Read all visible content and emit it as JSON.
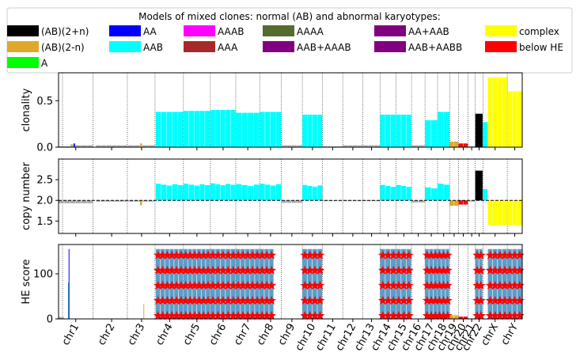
{
  "legend": {
    "title": "Models of mixed clones: normal (AB) and abnormal karyotypes:",
    "items": [
      {
        "label": "(AB)(2+n)",
        "color": "#000000"
      },
      {
        "label": "AA",
        "color": "#0000ff"
      },
      {
        "label": "AAAB",
        "color": "#ff00ff"
      },
      {
        "label": "AAAA",
        "color": "#556b2f"
      },
      {
        "label": "AA+AAB",
        "color": "#800080"
      },
      {
        "label": "complex",
        "color": "#ffff00"
      },
      {
        "label": "(AB)(2-n)",
        "color": "#e0a82a"
      },
      {
        "label": "AAB",
        "color": "#00ffff"
      },
      {
        "label": "AAA",
        "color": "#a52a2a"
      },
      {
        "label": "AAB+AAAB",
        "color": "#800080"
      },
      {
        "label": "AAB+AABB",
        "color": "#800080"
      },
      {
        "label": "below HE",
        "color": "#ff0000"
      },
      {
        "label": "A",
        "color": "#00ff00"
      }
    ]
  },
  "chart_data": {
    "type": "bar",
    "shared_x": {
      "chromosomes": [
        "chr1",
        "chr2",
        "chr3",
        "chr4",
        "chr5",
        "chr6",
        "chr7",
        "chr8",
        "chr9",
        "chr10",
        "chr11",
        "chr12",
        "chr13",
        "chr14",
        "chr15",
        "chr16",
        "chr17",
        "chr18",
        "chr19",
        "chr20",
        "chr21",
        "chr22",
        "chrX",
        "chrY"
      ],
      "xlim": [
        0,
        3100
      ]
    },
    "panels": [
      {
        "ylabel": "clonality",
        "ylim": [
          0,
          0.8
        ],
        "yticks": [
          0.0,
          0.5
        ],
        "ytick_labels": [
          "0.0",
          "0.5"
        ],
        "segments": [
          {
            "chrom": "chr1",
            "start": 0,
            "end": 80,
            "value": 0.01,
            "color": "#aaaaaa"
          },
          {
            "chrom": "chr1",
            "start": 80,
            "end": 100,
            "value": 0.03,
            "color": "#aaaaaa"
          },
          {
            "chrom": "chr1",
            "start": 100,
            "end": 112,
            "value": 0.04,
            "color": "#0000ff"
          },
          {
            "chrom": "chr1",
            "start": 112,
            "end": 230,
            "value": 0.02,
            "color": "#aaaaaa"
          },
          {
            "chrom": "chr2",
            "start": 250,
            "end": 460,
            "value": 0.02,
            "color": "#aaaaaa"
          },
          {
            "chrom": "chr3",
            "start": 465,
            "end": 545,
            "value": 0.02,
            "color": "#aaaaaa"
          },
          {
            "chrom": "chr3",
            "start": 545,
            "end": 560,
            "value": 0.04,
            "color": "#e0a82a"
          },
          {
            "chrom": "chr3",
            "start": 560,
            "end": 645,
            "value": 0.02,
            "color": "#aaaaaa"
          },
          {
            "chrom": "chr4",
            "start": 650,
            "end": 835,
            "value": 0.38,
            "color": "#00ffff"
          },
          {
            "chrom": "chr5",
            "start": 835,
            "end": 1015,
            "value": 0.39,
            "color": "#00ffff"
          },
          {
            "chrom": "chr6",
            "start": 1015,
            "end": 1185,
            "value": 0.4,
            "color": "#00ffff"
          },
          {
            "chrom": "chr7",
            "start": 1185,
            "end": 1345,
            "value": 0.37,
            "color": "#00ffff"
          },
          {
            "chrom": "chr8",
            "start": 1345,
            "end": 1490,
            "value": 0.38,
            "color": "#00ffff"
          },
          {
            "chrom": "chr9",
            "start": 1490,
            "end": 1630,
            "value": 0.02,
            "color": "#aaaaaa"
          },
          {
            "chrom": "chr10",
            "start": 1630,
            "end": 1765,
            "value": 0.35,
            "color": "#00ffff"
          },
          {
            "chrom": "chr11",
            "start": 1765,
            "end": 1900,
            "value": 0.01,
            "color": "#aaaaaa"
          },
          {
            "chrom": "chr12",
            "start": 1900,
            "end": 2035,
            "value": 0.02,
            "color": "#aaaaaa"
          },
          {
            "chrom": "chr13",
            "start": 2035,
            "end": 2150,
            "value": 0.02,
            "color": "#aaaaaa"
          },
          {
            "chrom": "chr14",
            "start": 2150,
            "end": 2257,
            "value": 0.35,
            "color": "#00ffff"
          },
          {
            "chrom": "chr15",
            "start": 2257,
            "end": 2360,
            "value": 0.35,
            "color": "#00ffff"
          },
          {
            "chrom": "chr16",
            "start": 2360,
            "end": 2450,
            "value": 0.02,
            "color": "#aaaaaa"
          },
          {
            "chrom": "chr17",
            "start": 2450,
            "end": 2534,
            "value": 0.29,
            "color": "#00ffff"
          },
          {
            "chrom": "chr18",
            "start": 2534,
            "end": 2615,
            "value": 0.38,
            "color": "#00ffff"
          },
          {
            "chrom": "chr19",
            "start": 2615,
            "end": 2674,
            "value": 0.06,
            "color": "#e0a82a"
          },
          {
            "chrom": "chr20",
            "start": 2674,
            "end": 2738,
            "value": 0.04,
            "color": "#ff0000"
          },
          {
            "chrom": "chr21",
            "start": 2738,
            "end": 2786,
            "value": 0.01,
            "color": "#aaaaaa"
          },
          {
            "chrom": "chr22",
            "start": 2786,
            "end": 2837,
            "value": 0.36,
            "color": "#000000"
          },
          {
            "chrom": "chrX",
            "start": 2837,
            "end": 2870,
            "value": 0.27,
            "color": "#00ffff"
          },
          {
            "chrom": "chrX",
            "start": 2870,
            "end": 3000,
            "value": 0.75,
            "color": "#ffff00"
          },
          {
            "chrom": "chrY",
            "start": 3000,
            "end": 3100,
            "value": 0.6,
            "color": "#ffff00"
          }
        ]
      },
      {
        "ylabel": "copy number",
        "ylim": [
          1.2,
          3.0
        ],
        "yticks": [
          1.5,
          2.0,
          2.5
        ],
        "ytick_labels": [
          "1.5",
          "2.0",
          "2.5"
        ],
        "reference_line": 2.0,
        "segments": [
          {
            "chrom": "chr1",
            "start": 0,
            "end": 230,
            "value": 1.93,
            "color": "#aaaaaa"
          },
          {
            "chrom": "chr2",
            "start": 250,
            "end": 460,
            "value": 1.97,
            "color": "#aaaaaa"
          },
          {
            "chrom": "chr3",
            "start": 465,
            "end": 545,
            "value": 1.97,
            "color": "#aaaaaa"
          },
          {
            "chrom": "chr3",
            "start": 545,
            "end": 560,
            "value": 1.88,
            "color": "#e0a82a"
          },
          {
            "chrom": "chr3",
            "start": 560,
            "end": 645,
            "value": 1.97,
            "color": "#aaaaaa"
          },
          {
            "chrom": "chr4",
            "start": 650,
            "end": 835,
            "value": 2.38,
            "color": "#00ffff"
          },
          {
            "chrom": "chr5",
            "start": 835,
            "end": 1015,
            "value": 2.38,
            "color": "#00ffff"
          },
          {
            "chrom": "chr6",
            "start": 1015,
            "end": 1185,
            "value": 2.39,
            "color": "#00ffff"
          },
          {
            "chrom": "chr7",
            "start": 1185,
            "end": 1345,
            "value": 2.37,
            "color": "#00ffff"
          },
          {
            "chrom": "chr8",
            "start": 1345,
            "end": 1490,
            "value": 2.38,
            "color": "#00ffff"
          },
          {
            "chrom": "chr9",
            "start": 1490,
            "end": 1630,
            "value": 1.94,
            "color": "#aaaaaa"
          },
          {
            "chrom": "chr10",
            "start": 1630,
            "end": 1765,
            "value": 2.35,
            "color": "#00ffff"
          },
          {
            "chrom": "chr11",
            "start": 1765,
            "end": 1900,
            "value": 1.98,
            "color": "#aaaaaa"
          },
          {
            "chrom": "chr12",
            "start": 1900,
            "end": 2035,
            "value": 1.98,
            "color": "#aaaaaa"
          },
          {
            "chrom": "chr13",
            "start": 2035,
            "end": 2150,
            "value": 1.98,
            "color": "#aaaaaa"
          },
          {
            "chrom": "chr14",
            "start": 2150,
            "end": 2257,
            "value": 2.35,
            "color": "#00ffff"
          },
          {
            "chrom": "chr15",
            "start": 2257,
            "end": 2360,
            "value": 2.35,
            "color": "#00ffff"
          },
          {
            "chrom": "chr16",
            "start": 2360,
            "end": 2450,
            "value": 1.95,
            "color": "#aaaaaa"
          },
          {
            "chrom": "chr17",
            "start": 2450,
            "end": 2534,
            "value": 2.29,
            "color": "#00ffff"
          },
          {
            "chrom": "chr18",
            "start": 2534,
            "end": 2615,
            "value": 2.38,
            "color": "#00ffff"
          },
          {
            "chrom": "chr19",
            "start": 2615,
            "end": 2674,
            "value": 1.87,
            "color": "#e0a82a"
          },
          {
            "chrom": "chr20",
            "start": 2674,
            "end": 2738,
            "value": 1.9,
            "color": "#ff0000"
          },
          {
            "chrom": "chr21",
            "start": 2738,
            "end": 2786,
            "value": 1.97,
            "color": "#aaaaaa"
          },
          {
            "chrom": "chr22",
            "start": 2786,
            "end": 2837,
            "value": 2.72,
            "color": "#000000"
          },
          {
            "chrom": "chrX",
            "start": 2837,
            "end": 2870,
            "value": 2.25,
            "color": "#00ffff"
          },
          {
            "chrom": "chrX",
            "start": 2870,
            "end": 3000,
            "value": 1.4,
            "color": "#ffff00"
          },
          {
            "chrom": "chrY",
            "start": 3000,
            "end": 3100,
            "value": 1.4,
            "color": "#ffff00"
          }
        ]
      },
      {
        "ylabel": "HE score",
        "ylim": [
          0,
          165
        ],
        "yticks": [
          0,
          100
        ],
        "ytick_labels": [
          "0",
          "100"
        ],
        "bar_color": "#5b9ec9",
        "marker_color": "#ff0000",
        "spikes": [
          {
            "x": 70,
            "value": 155,
            "color": "#0000ff"
          },
          {
            "x": 66,
            "value": 80,
            "color": "#1f77b4"
          },
          {
            "x": 570,
            "value": 33,
            "color": "#e0a82a"
          }
        ],
        "segments": [
          {
            "chrom": "chr1",
            "start": 0,
            "end": 40,
            "value": 4,
            "starred": false
          },
          {
            "chrom": "chr4",
            "start": 650,
            "end": 835,
            "value": 155,
            "starred": true
          },
          {
            "chrom": "chr5",
            "start": 835,
            "end": 1015,
            "value": 155,
            "starred": true
          },
          {
            "chrom": "chr6",
            "start": 1015,
            "end": 1185,
            "value": 155,
            "starred": true
          },
          {
            "chrom": "chr7",
            "start": 1185,
            "end": 1345,
            "value": 155,
            "starred": true
          },
          {
            "chrom": "chr8",
            "start": 1345,
            "end": 1440,
            "value": 155,
            "starred": true
          },
          {
            "chrom": "chr10",
            "start": 1630,
            "end": 1765,
            "value": 155,
            "starred": true
          },
          {
            "chrom": "chr14",
            "start": 2150,
            "end": 2257,
            "value": 155,
            "starred": true
          },
          {
            "chrom": "chr15",
            "start": 2257,
            "end": 2360,
            "value": 155,
            "starred": true
          },
          {
            "chrom": "chr17",
            "start": 2450,
            "end": 2534,
            "value": 155,
            "starred": true
          },
          {
            "chrom": "chr18",
            "start": 2534,
            "end": 2615,
            "value": 155,
            "starred": true
          },
          {
            "chrom": "chr19",
            "start": 2615,
            "end": 2674,
            "value": 8,
            "starred": false
          },
          {
            "chrom": "chr20",
            "start": 2674,
            "end": 2738,
            "value": 5,
            "starred": false
          },
          {
            "chrom": "chr22",
            "start": 2786,
            "end": 2837,
            "value": 155,
            "starred": true
          },
          {
            "chrom": "chrX",
            "start": 2870,
            "end": 3000,
            "value": 155,
            "starred": true
          },
          {
            "chrom": "chrY",
            "start": 3000,
            "end": 3100,
            "value": 155,
            "starred": true
          }
        ]
      }
    ]
  }
}
